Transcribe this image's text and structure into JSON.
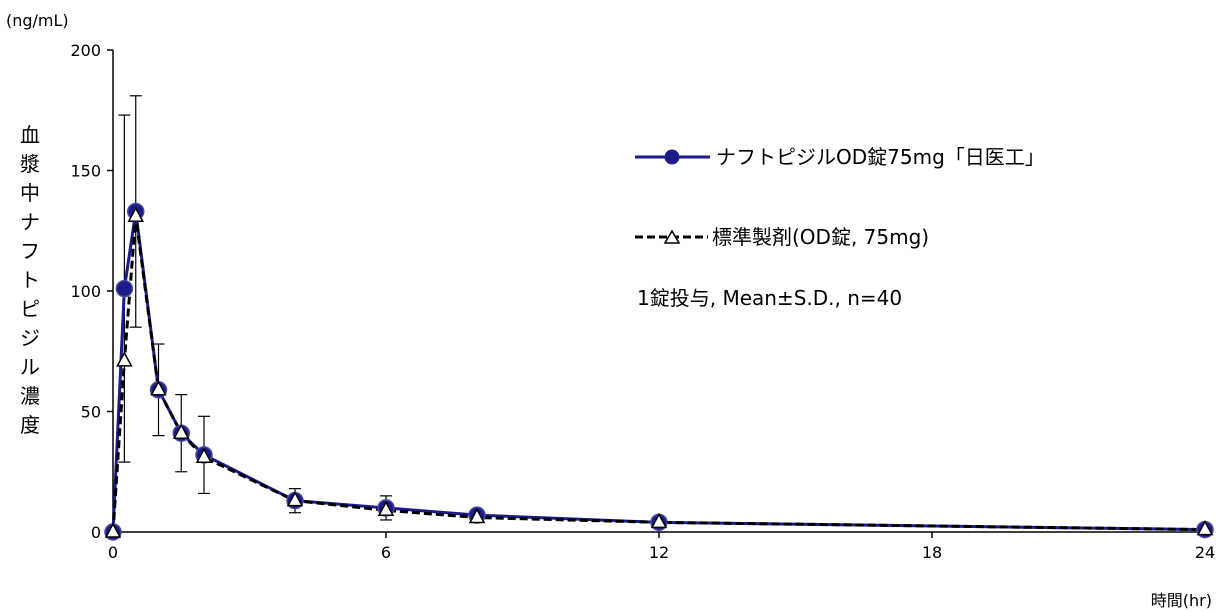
{
  "chart_data": {
    "type": "line",
    "title": "",
    "xlabel": "時間(hr)",
    "ylabel": "血漿中ナフトピジル濃度",
    "y_unit": "(ng/mL)",
    "xlim": [
      0,
      24
    ],
    "ylim": [
      0,
      200
    ],
    "x_ticks": [
      0,
      6,
      12,
      18,
      24
    ],
    "y_ticks": [
      0,
      50,
      100,
      150,
      200
    ],
    "grid": false,
    "legend_position": "upper-right",
    "annotation": "1錠投与, Mean±S.D., n=40",
    "series": [
      {
        "name": "ナフトピジルOD錠75mg「日医工」",
        "style": "solid-circle",
        "color": "#1b1b8a",
        "x": [
          0,
          0.25,
          0.5,
          1,
          1.5,
          2,
          4,
          6,
          8,
          12,
          24
        ],
        "y": [
          0,
          101,
          133,
          59,
          41,
          32,
          13,
          10,
          7,
          4,
          1
        ],
        "sd": [
          0,
          72,
          48,
          19,
          16,
          16,
          5,
          5,
          2,
          1,
          0.5
        ]
      },
      {
        "name": "標準製剤(OD錠, 75mg)",
        "style": "dashed-triangle",
        "color": "#000000",
        "x": [
          0,
          0.25,
          0.5,
          1,
          1.5,
          2,
          4,
          6,
          8,
          12,
          24
        ],
        "y": [
          0,
          71,
          131,
          59,
          41,
          31,
          13,
          9,
          6,
          4,
          1
        ],
        "sd": [
          0,
          0,
          0,
          0,
          0,
          0,
          0,
          0,
          0,
          0,
          0
        ]
      }
    ]
  }
}
